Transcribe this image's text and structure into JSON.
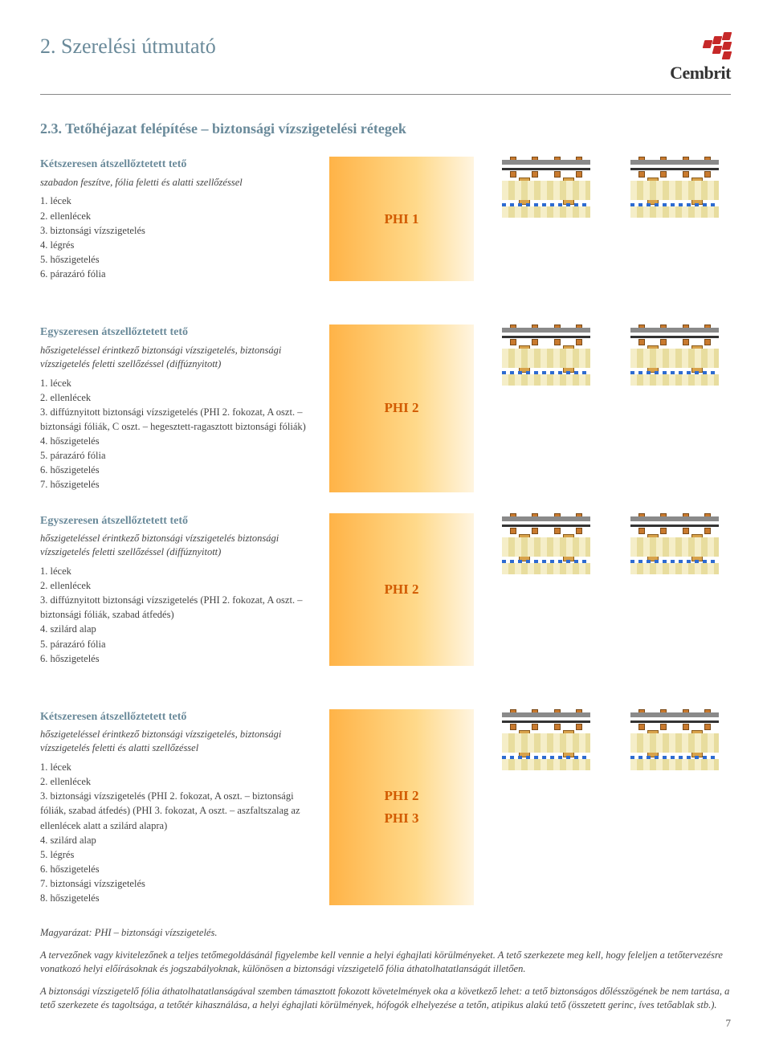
{
  "header": {
    "title": "2. Szerelési útmutató",
    "brand": "Cembrit"
  },
  "section_title": "2.3. Tetőhéjazat felépítése – biztonsági vízszigetelési rétegek",
  "badges": {
    "phi1": "PHI 1",
    "phi2": "PHI 2",
    "phi3": "PHI 3"
  },
  "badge_style": {
    "gradient_from": "#ffb347",
    "gradient_mid": "#ffd98a",
    "gradient_to": "#fff5e0",
    "text_color": "#d15a00",
    "font_size_pt": 17
  },
  "colors": {
    "heading": "#6a8a9a",
    "body": "#444444",
    "rule": "#888888",
    "logo": "#c62828",
    "batten": "#c97a2e",
    "joist": "#d8a24a",
    "insulation": "#f5eec8",
    "vapor": "#2d6bd1"
  },
  "blocks": [
    {
      "title": "Kétszeresen átszellőztetett tető",
      "desc": "szabadon feszítve, fólia feletti és alatti szellőzéssel",
      "items": [
        "1. lécek",
        "2. ellenlécek",
        "3. biztonsági vízszigetelés",
        "4. légrés",
        "5. hőszigetelés",
        "6. párazáró fólia"
      ],
      "badges": [
        "phi1"
      ]
    },
    {
      "title": "Egyszeresen átszellőztetett tető",
      "desc": "hőszigeteléssel érintkező biztonsági vízszigetelés, biztonsági vízszigetelés feletti szellőzéssel (diffúznyitott)",
      "items": [
        "1. lécek",
        "2. ellenlécek",
        "3. diffúznyitott biztonsági vízszigetelés (PHI 2. fokozat, A oszt. – biztonsági fóliák, C oszt. – hegesztett-ragasztott biztonsági fóliák)",
        "4. hőszigetelés",
        "5. párazáró fólia",
        "6. hőszigetelés",
        "7. hőszigetelés"
      ],
      "badges": [
        "phi2"
      ]
    },
    {
      "title": "Egyszeresen átszellőztetett tető",
      "desc": "hőszigeteléssel érintkező biztonsági vízszigetelés biztonsági vízszigetelés feletti szellőzéssel (diffúznyitott)",
      "items": [
        "1. lécek",
        "2. ellenlécek",
        "3. diffúznyitott biztonsági vízszigetelés (PHI 2. fokozat, A oszt. – biztonsági fóliák, szabad átfedés)",
        "4. szilárd alap",
        "5. párazáró fólia",
        "6. hőszigetelés"
      ],
      "badges": [
        "phi2"
      ]
    },
    {
      "title": "Kétszeresen átszellőztetett tető",
      "desc": "hőszigeteléssel érintkező biztonsági vízszigetelés, biztonsági vízszigetelés feletti és alatti szellőzéssel",
      "items": [
        "1. lécek",
        "2. ellenlécek",
        "3. biztonsági vízszigetelés (PHI 2. fokozat, A oszt. – biztonsági fóliák, szabad átfedés) (PHI 3. fokozat, A oszt. – aszfaltszalag az ellenlécek alatt a szilárd alapra)",
        "4. szilárd alap",
        "5. légrés",
        "6. hőszigetelés",
        "7. biztonsági vízszigetelés",
        "8. hőszigetelés"
      ],
      "badges": [
        "phi2",
        "phi3"
      ]
    }
  ],
  "footer": {
    "legend": "Magyarázat: PHI – biztonsági vízszigetelés.",
    "p1": "A tervezőnek vagy kivitelezőnek a teljes tetőmegoldásánál figyelembe kell vennie a helyi éghajlati körülményeket. A tető szerkezete meg kell, hogy feleljen a tetőtervezésre vonatkozó helyi előírásoknak és jogszabályoknak, különösen a biztonsági vízszigetelő fólia áthatolhatatlanságát illetően.",
    "p2": "A biztonsági vízszigetelő fólia áthatolhatatlanságával szemben támasztott fokozott követelmények oka a következő lehet: a tető biztonságos dőlésszögének be nem tartása, a tető szerkezete és tagoltsága, a tetőtér kihasználása, a helyi éghajlati körülmények, hófogók elhelyezése a tetőn, atipikus alakú tető (összetett gerinc, íves tetőablak stb.)."
  },
  "page_number": "7"
}
